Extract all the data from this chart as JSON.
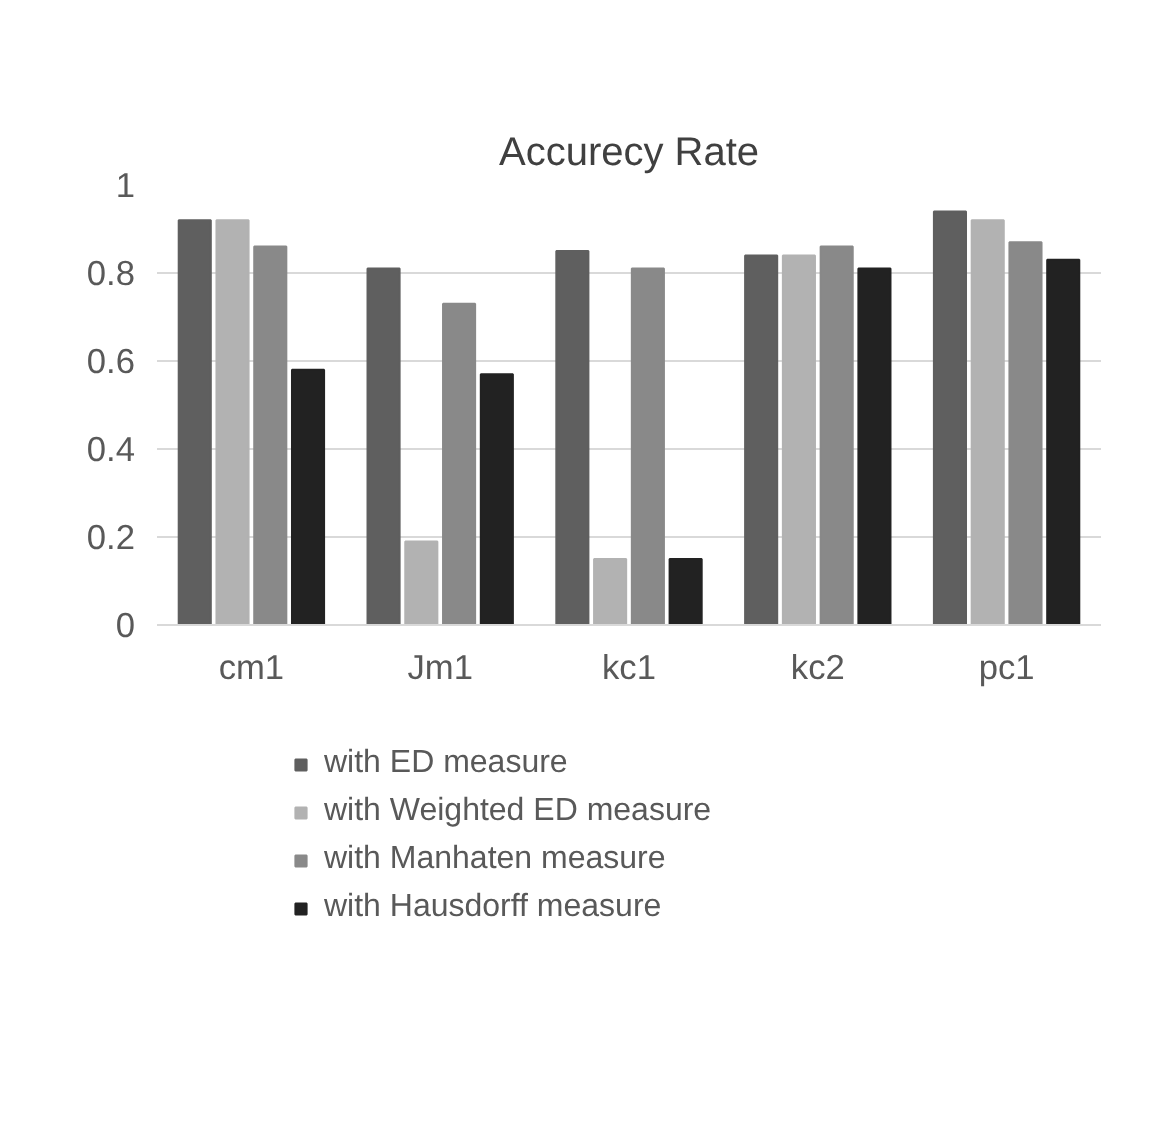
{
  "chart_data": {
    "type": "bar",
    "title": "Accurecy Rate",
    "categories": [
      "cm1",
      "Jm1",
      "kc1",
      "kc2",
      "pc1"
    ],
    "series": [
      {
        "name": "with ED measure",
        "color": "#5f5f5f",
        "values": [
          0.92,
          0.81,
          0.85,
          0.84,
          0.94
        ]
      },
      {
        "name": "with Weighted ED measure",
        "color": "#b2b2b2",
        "values": [
          0.92,
          0.19,
          0.15,
          0.84,
          0.92
        ]
      },
      {
        "name": "with Manhaten measure",
        "color": "#898989",
        "values": [
          0.86,
          0.73,
          0.81,
          0.86,
          0.87
        ]
      },
      {
        "name": "with Hausdorff measure",
        "color": "#222222",
        "values": [
          0.58,
          0.57,
          0.15,
          0.81,
          0.83
        ]
      }
    ],
    "ylim": [
      0,
      1
    ],
    "yticks": [
      0,
      0.2,
      0.4,
      0.6,
      0.8,
      1
    ],
    "grid": "y",
    "legend": "bottom"
  }
}
